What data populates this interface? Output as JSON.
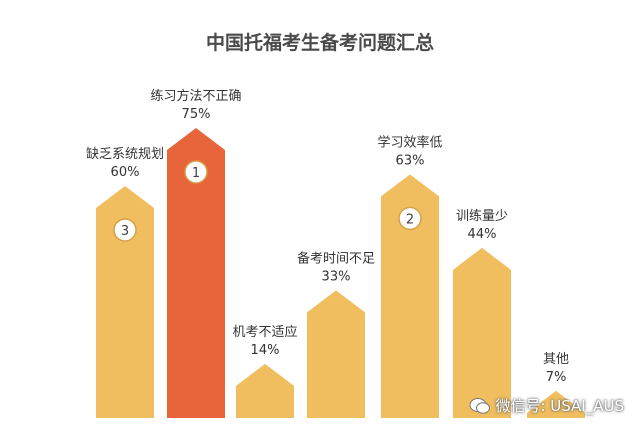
{
  "chart_data": {
    "type": "bar",
    "title": "中国托福考生备考问题汇总",
    "categories": [
      "缺乏系统规划",
      "练习方法不正确",
      "机考不适应",
      "备考时间不足",
      "学习效率低",
      "训练量少",
      "其他"
    ],
    "values": [
      60,
      75,
      14,
      33,
      63,
      44,
      7
    ],
    "value_labels": [
      "60%",
      "75%",
      "14%",
      "33%",
      "63%",
      "44%",
      "7%"
    ],
    "ranks": [
      "3",
      "1",
      "",
      "",
      "2",
      "",
      ""
    ],
    "ylim": [
      0,
      80
    ],
    "bar_color": "#F0BE5F",
    "highlight_color": "#E8643A",
    "highlight_index": 1
  },
  "watermark": {
    "text": "微信号: USAI_AUS",
    "icon": "wechat-icon"
  }
}
